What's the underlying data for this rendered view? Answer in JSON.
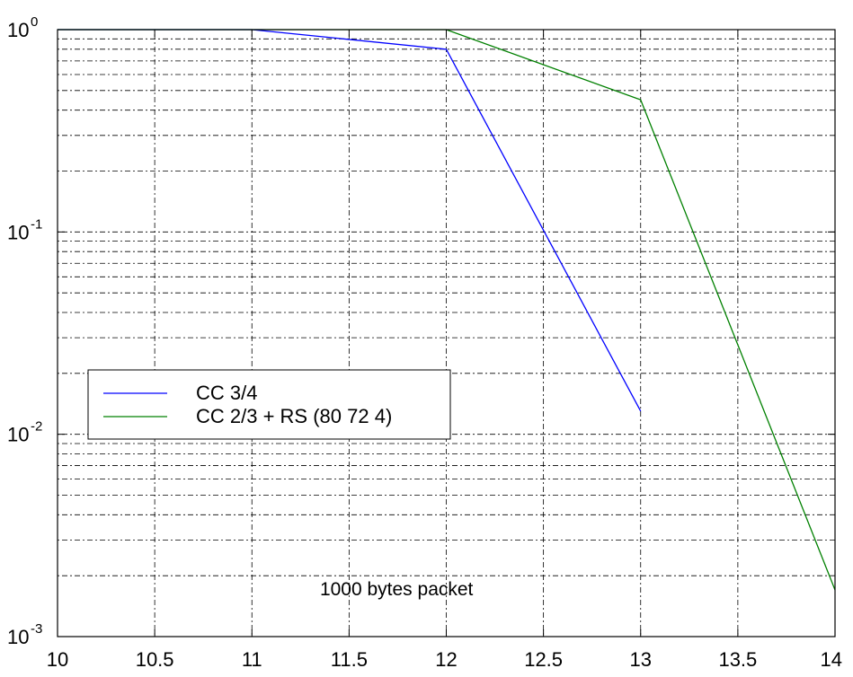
{
  "chart_data": {
    "type": "line",
    "title": "",
    "xlabel": "",
    "ylabel": "",
    "x_scale": "linear",
    "y_scale": "log",
    "xlim": [
      10,
      14
    ],
    "ylim": [
      0.001,
      1
    ],
    "grid": true,
    "x_ticks": [
      {
        "value": 10,
        "label": "10"
      },
      {
        "value": 10.5,
        "label": "10.5"
      },
      {
        "value": 11,
        "label": "11"
      },
      {
        "value": 11.5,
        "label": "11.5"
      },
      {
        "value": 12,
        "label": "12"
      },
      {
        "value": 12.5,
        "label": "12.5"
      },
      {
        "value": 13,
        "label": "13"
      },
      {
        "value": 13.5,
        "label": "13.5"
      },
      {
        "value": 14,
        "label": "14"
      }
    ],
    "y_ticks": [
      {
        "value": 1,
        "base": "10",
        "exp": "0"
      },
      {
        "value": 0.1,
        "base": "10",
        "exp": "-1"
      },
      {
        "value": 0.01,
        "base": "10",
        "exp": "-2"
      },
      {
        "value": 0.001,
        "base": "10",
        "exp": "-3"
      }
    ],
    "series": [
      {
        "name": "CC 3/4",
        "color": "#0000ff",
        "x": [
          10,
          11,
          12,
          13
        ],
        "y": [
          1,
          1,
          0.8,
          0.013
        ]
      },
      {
        "name": "CC 2/3 + RS (80 72 4)",
        "color": "#008000",
        "x": [
          10,
          11,
          12,
          13,
          14
        ],
        "y": [
          1,
          1,
          1,
          0.45,
          0.0017
        ]
      }
    ],
    "legend_position": "center-left",
    "annotations": [
      {
        "text": "1000 bytes packet",
        "x": 11.35,
        "y": 0.0016
      }
    ]
  }
}
